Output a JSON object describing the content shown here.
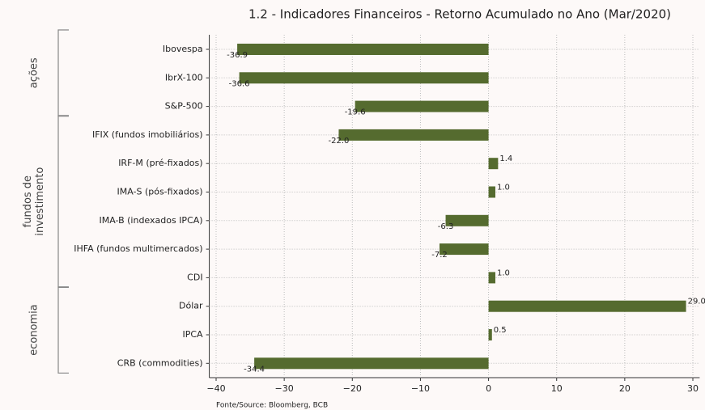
{
  "chart_data": {
    "type": "bar",
    "orientation": "horizontal",
    "title": "1.2 - Indicadores Financeiros - Retorno Acumulado no Ano (Mar/2020)",
    "source": "Fonte/Source: Bloomberg, BCB",
    "color": "#556b2f",
    "groups": [
      {
        "label_lines": [
          "ações"
        ],
        "categories": [
          "Ibovespa",
          "IbrX-100",
          "S&P-500"
        ],
        "values": [
          -36.9,
          -36.6,
          -19.6
        ],
        "value_labels": [
          "-36.9",
          "-36.6",
          "-19.6"
        ]
      },
      {
        "label_lines": [
          "fundos de",
          "investimento"
        ],
        "categories": [
          "IFIX (fundos imobiliários)",
          "IRF-M (pré-fixados)",
          "IMA-S (pós-fixados)",
          "IMA-B (indexados IPCA)",
          "IHFA (fundos multimercados)",
          "CDI"
        ],
        "values": [
          -22.0,
          1.4,
          1.0,
          -6.3,
          -7.2,
          1.0
        ],
        "value_labels": [
          "-22.0",
          "1.4",
          "1.0",
          "-6.3",
          "-7.2",
          "1.0"
        ]
      },
      {
        "label_lines": [
          "economia"
        ],
        "categories": [
          "Dólar",
          "IPCA",
          "CRB (commodities)"
        ],
        "values": [
          29.0,
          0.5,
          -34.4
        ],
        "value_labels": [
          "29.0",
          "0.5",
          "-34.4"
        ]
      }
    ],
    "xlim": [
      -41,
      31
    ],
    "xticks": [
      {
        "value": -40,
        "label": "−40"
      },
      {
        "value": -30,
        "label": "−30"
      },
      {
        "value": -20,
        "label": "−20"
      },
      {
        "value": -10,
        "label": "−10"
      },
      0,
      10,
      20,
      30
    ],
    "grid": true
  }
}
